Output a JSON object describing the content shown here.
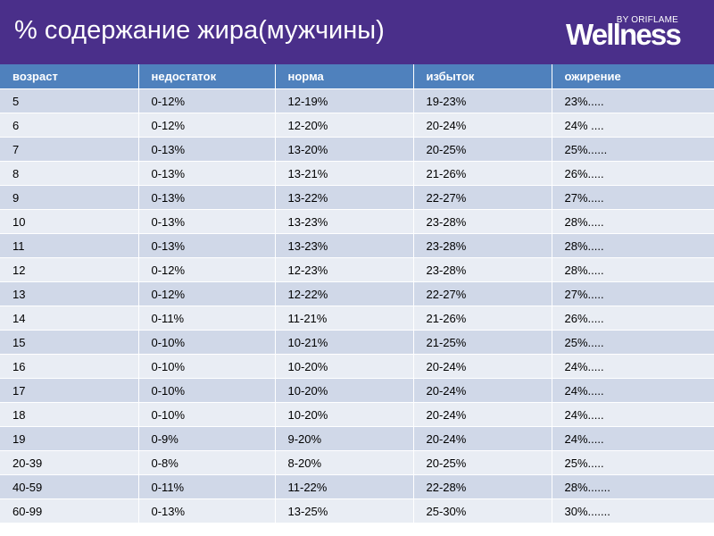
{
  "header": {
    "title": "% содержание жира(мужчины)",
    "logo_small": "BY ORIFLAME",
    "logo_main": "Wellness"
  },
  "table": {
    "columns": [
      "возраст",
      "недостаток",
      "норма",
      "избыток",
      "ожирение"
    ],
    "rows": [
      [
        "5",
        "0-12%",
        "12-19%",
        "19-23%",
        "23%....."
      ],
      [
        "6",
        "0-12%",
        "12-20%",
        "20-24%",
        "24% ...."
      ],
      [
        "7",
        "0-13%",
        "13-20%",
        "20-25%",
        "25%......"
      ],
      [
        "8",
        "0-13%",
        "13-21%",
        "21-26%",
        "26%....."
      ],
      [
        "9",
        "0-13%",
        "13-22%",
        "22-27%",
        "27%....."
      ],
      [
        "10",
        "0-13%",
        "13-23%",
        "23-28%",
        "28%....."
      ],
      [
        "11",
        "0-13%",
        "13-23%",
        "23-28%",
        "28%....."
      ],
      [
        "12",
        "0-12%",
        "12-23%",
        "23-28%",
        "28%....."
      ],
      [
        "13",
        "0-12%",
        "12-22%",
        "22-27%",
        "27%....."
      ],
      [
        "14",
        "0-11%",
        "11-21%",
        "21-26%",
        "26%....."
      ],
      [
        "15",
        "0-10%",
        "10-21%",
        "21-25%",
        "25%....."
      ],
      [
        "16",
        "0-10%",
        "10-20%",
        "20-24%",
        "24%....."
      ],
      [
        "17",
        "0-10%",
        "10-20%",
        "20-24%",
        "24%....."
      ],
      [
        "18",
        "0-10%",
        "10-20%",
        "20-24%",
        "24%....."
      ],
      [
        "19",
        "0-9%",
        "9-20%",
        "20-24%",
        "24%....."
      ],
      [
        "20-39",
        "0-8%",
        "8-20%",
        "20-25%",
        "25%....."
      ],
      [
        "40-59",
        "0-11%",
        "11-22%",
        "22-28%",
        "28%......."
      ],
      [
        "60-99",
        "0-13%",
        "13-25%",
        "25-30%",
        "30%......."
      ]
    ]
  },
  "colors": {
    "header_bg": "#4a2f8a",
    "table_header_bg": "#4f81bd",
    "row_dark": "#d0d8e8",
    "row_light": "#e9edf4"
  }
}
